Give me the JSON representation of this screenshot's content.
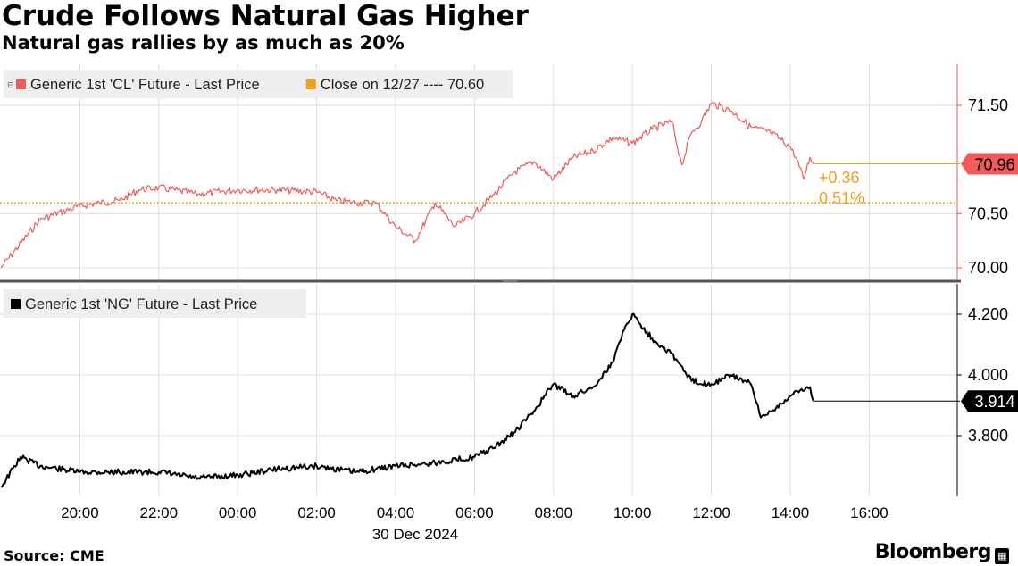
{
  "header": {
    "title": "Crude Follows Natural Gas Higher",
    "subtitle": "Natural gas rallies by as much as 20%"
  },
  "footer": {
    "source": "Source: CME",
    "brand": "Bloomberg",
    "brand_icon": "bloomberg-terminal-icon"
  },
  "colors": {
    "crude_line": "#f05a5a",
    "close_line": "#f0a020",
    "ng_line": "#000000",
    "grid": "#dddddd",
    "axis": "#f05a5a"
  },
  "x_axis": {
    "ticks": [
      "20:00",
      "22:00",
      "00:00",
      "02:00",
      "04:00",
      "06:00",
      "08:00",
      "10:00",
      "12:00",
      "14:00",
      "16:00"
    ],
    "date_label": "30 Dec 2024"
  },
  "chart_data": [
    {
      "type": "line",
      "legend": [
        "Generic 1st 'CL' Future - Last Price",
        "Close on 12/27 ---- 70.60"
      ],
      "series": [
        {
          "name": "Generic 1st 'CL' Future - Last Price",
          "x": [
            "18:00",
            "19:00",
            "20:00",
            "20:30",
            "21:00",
            "21:30",
            "22:00",
            "23:00",
            "00:00",
            "01:00",
            "02:00",
            "02:30",
            "03:00",
            "03:30",
            "04:00",
            "04:30",
            "05:00",
            "05:30",
            "06:00",
            "06:30",
            "07:00",
            "07:30",
            "08:00",
            "08:30",
            "09:00",
            "09:30",
            "10:00",
            "10:30",
            "11:00",
            "11:15",
            "11:30",
            "11:45",
            "12:00",
            "12:30",
            "13:00",
            "13:30",
            "14:00",
            "14:10",
            "14:20",
            "14:30",
            "14:35"
          ],
          "y": [
            70.0,
            70.45,
            70.57,
            70.6,
            70.62,
            70.72,
            70.74,
            70.68,
            70.72,
            70.72,
            70.7,
            70.62,
            70.6,
            70.6,
            70.38,
            70.25,
            70.6,
            70.38,
            70.5,
            70.68,
            70.88,
            70.98,
            70.82,
            71.02,
            71.08,
            71.2,
            71.15,
            71.28,
            71.35,
            70.95,
            71.25,
            71.35,
            71.52,
            71.45,
            71.3,
            71.25,
            71.12,
            71.0,
            70.82,
            71.02,
            70.96
          ]
        }
      ],
      "reference_line": {
        "name": "Close on 12/27",
        "value": 70.6
      },
      "last_value_label": "70.96",
      "change_labels": [
        "+0.36",
        "0.51%"
      ],
      "y_ticks": [
        "71.50",
        "70.50",
        "70.00"
      ],
      "ylim": [
        69.95,
        71.85
      ]
    },
    {
      "type": "line",
      "legend": [
        "Generic 1st 'NG' Future - Last Price"
      ],
      "series": [
        {
          "name": "Generic 1st 'NG' Future - Last Price",
          "x": [
            "18:00",
            "18:30",
            "19:00",
            "20:00",
            "21:00",
            "22:00",
            "23:00",
            "00:00",
            "01:00",
            "02:00",
            "03:00",
            "04:00",
            "05:00",
            "06:00",
            "06:30",
            "07:00",
            "07:30",
            "08:00",
            "08:30",
            "09:00",
            "09:30",
            "09:45",
            "10:00",
            "10:30",
            "11:00",
            "11:30",
            "12:00",
            "12:30",
            "13:00",
            "13:15",
            "13:30",
            "14:00",
            "14:15",
            "14:30",
            "14:35"
          ],
          "y": [
            3.63,
            3.73,
            3.7,
            3.68,
            3.68,
            3.68,
            3.66,
            3.67,
            3.69,
            3.7,
            3.68,
            3.7,
            3.71,
            3.73,
            3.76,
            3.81,
            3.88,
            3.97,
            3.93,
            3.96,
            4.04,
            4.14,
            4.2,
            4.12,
            4.07,
            3.98,
            3.97,
            4.0,
            3.97,
            3.86,
            3.88,
            3.93,
            3.95,
            3.96,
            3.914
          ]
        }
      ],
      "last_value_label": "3.914",
      "y_ticks": [
        "4.200",
        "4.000",
        "3.800"
      ],
      "ylim": [
        3.6,
        4.3
      ]
    }
  ]
}
